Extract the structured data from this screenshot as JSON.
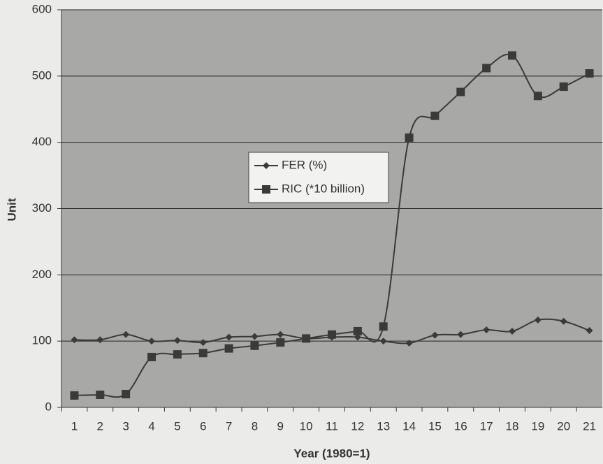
{
  "chart_data": {
    "type": "line",
    "x_label": "Year (1980=1)",
    "y_label": "Unit",
    "categories": [
      1,
      2,
      3,
      4,
      5,
      6,
      7,
      8,
      9,
      10,
      11,
      12,
      13,
      14,
      15,
      16,
      17,
      18,
      19,
      20,
      21
    ],
    "series": [
      {
        "name": "FER (%)",
        "color": "#3a3a3a",
        "marker": "diamond",
        "values": [
          102,
          102,
          110,
          100,
          101,
          98,
          106,
          107,
          110,
          104,
          106,
          106,
          100,
          97,
          109,
          110,
          117,
          115,
          132,
          130,
          116
        ]
      },
      {
        "name": "RIC (*10 billion)",
        "color": "#3a3a3a",
        "marker": "square",
        "values": [
          18,
          19,
          20,
          76,
          80,
          82,
          89,
          93,
          98,
          104,
          110,
          115,
          122,
          407,
          440,
          476,
          512,
          531,
          470,
          484,
          504
        ]
      }
    ],
    "ylim": [
      0,
      600
    ],
    "yticks": [
      0,
      100,
      200,
      300,
      400,
      500,
      600
    ],
    "grid": true
  }
}
